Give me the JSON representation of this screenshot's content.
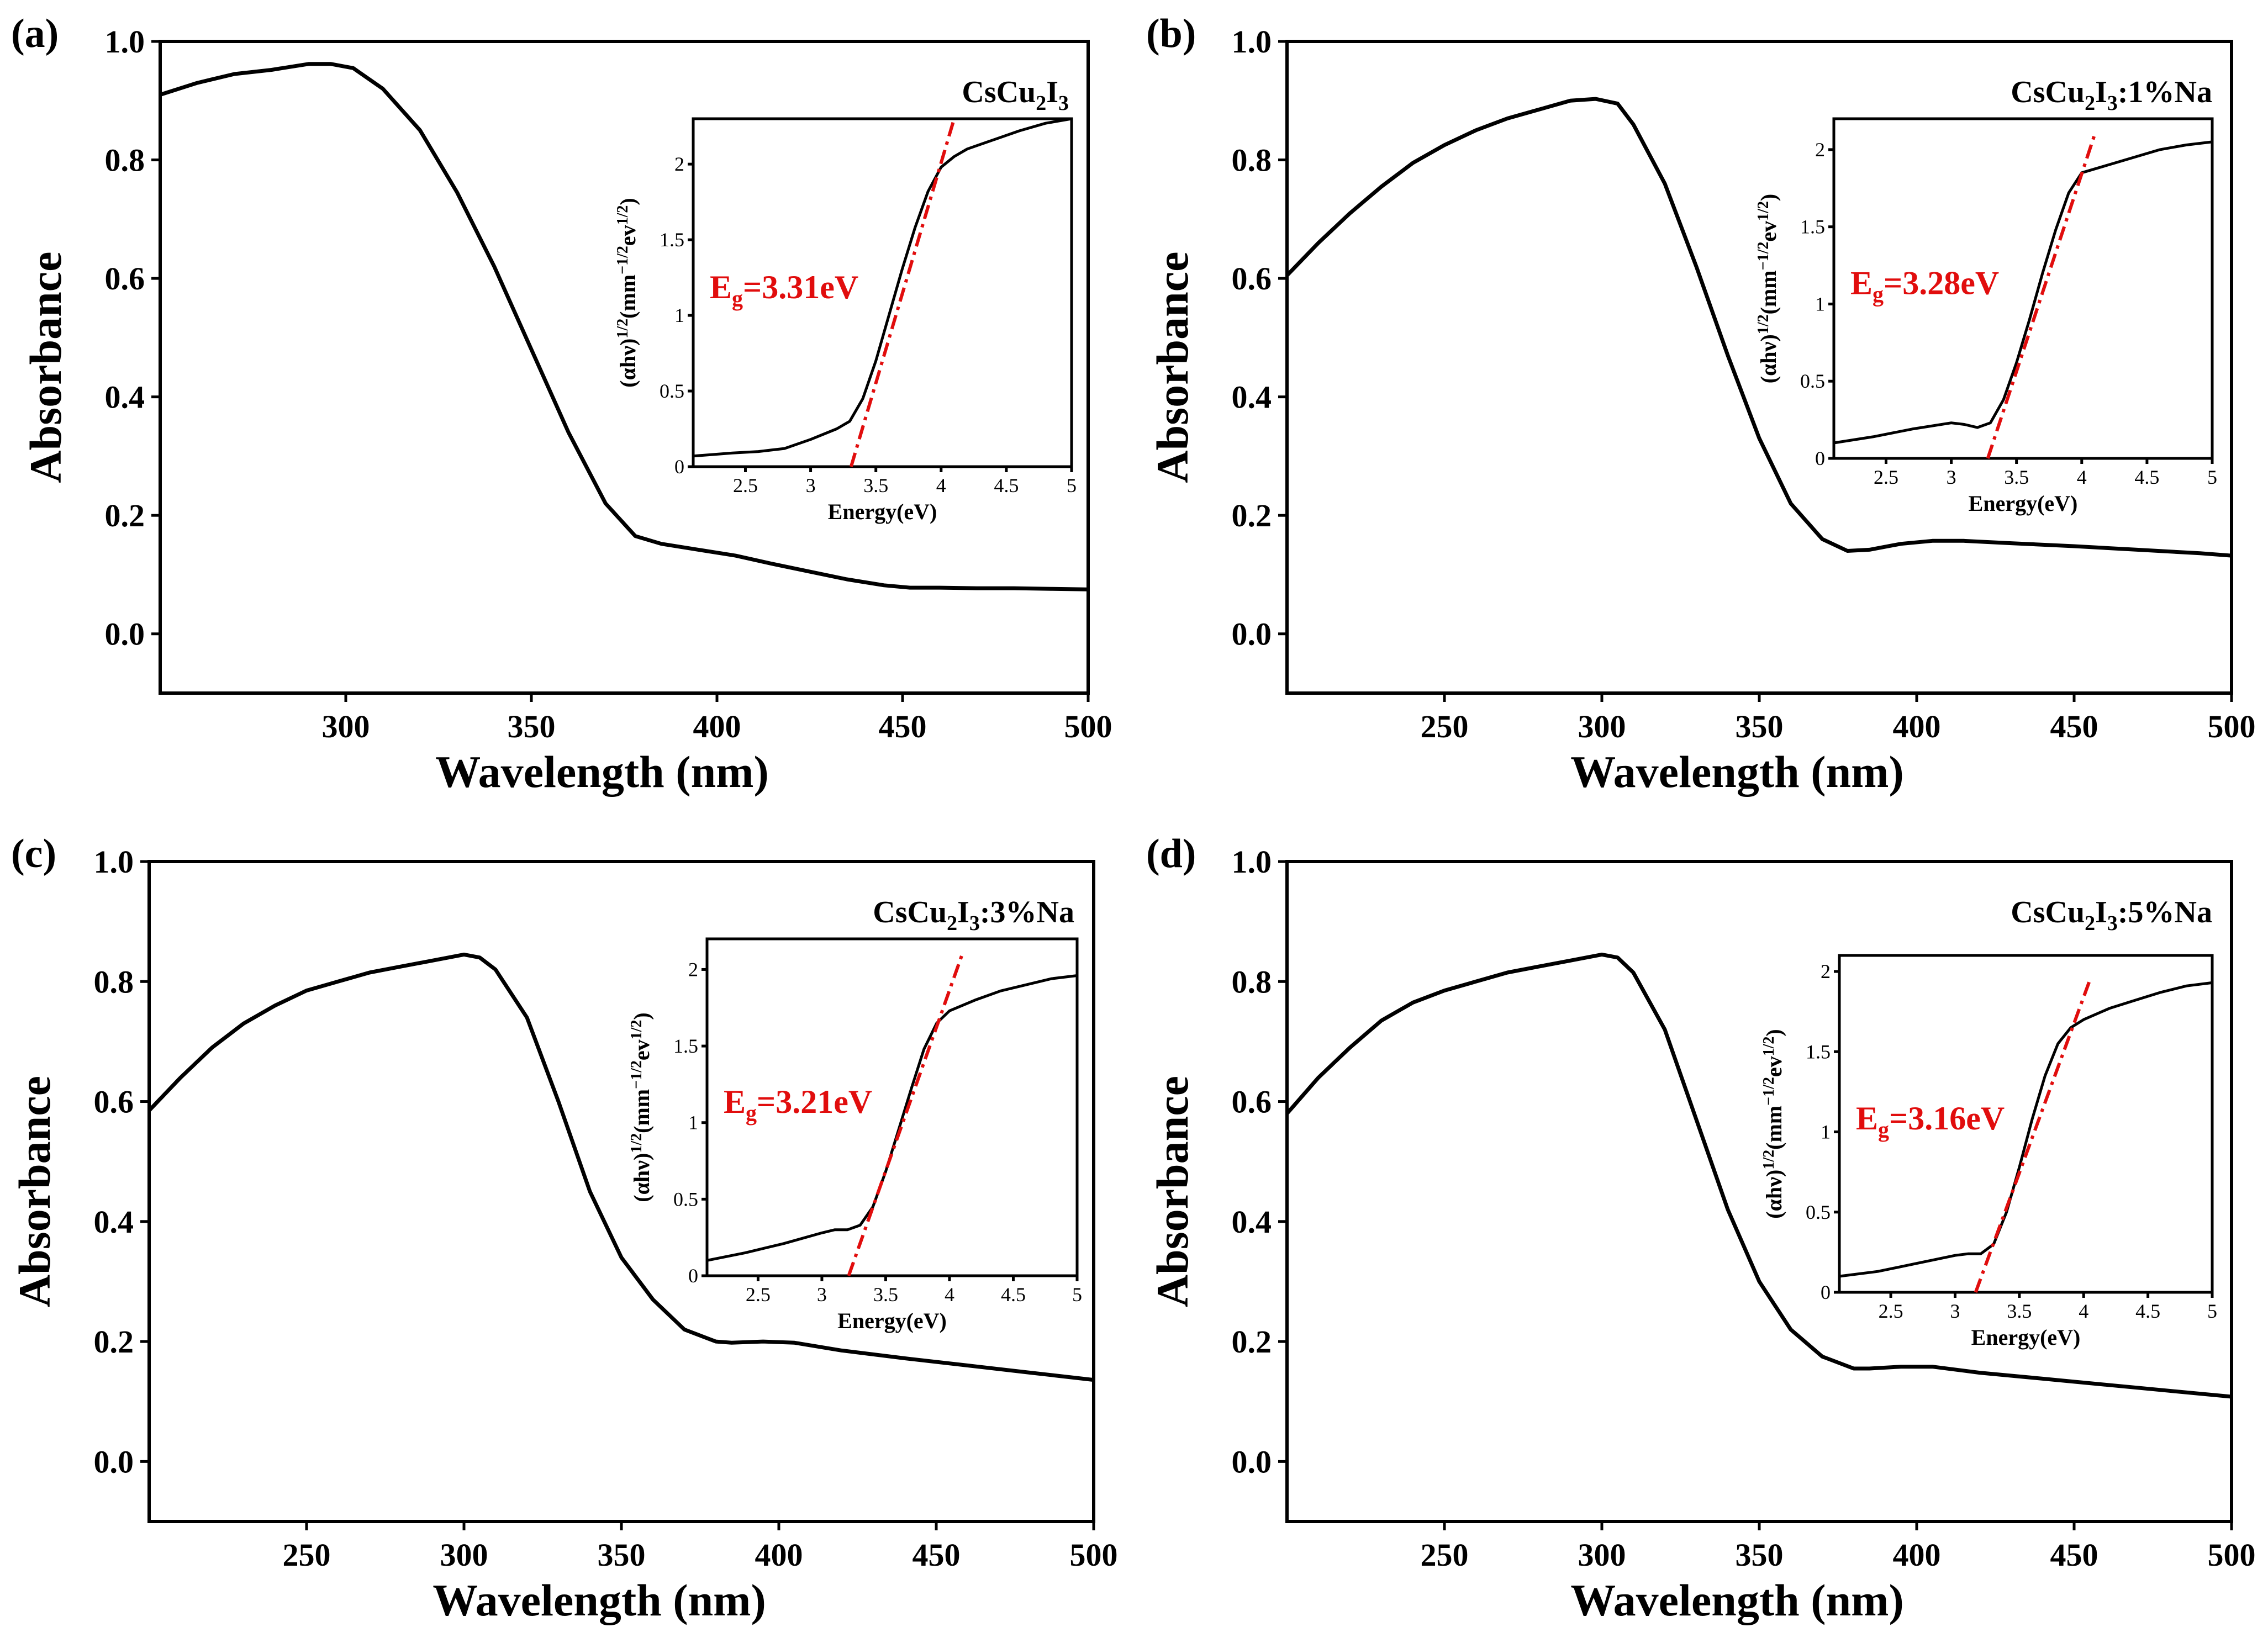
{
  "chart_data": [
    {
      "type": "line",
      "panel_label": "(a)",
      "sample": {
        "main": "CsCu",
        "sub1": "2",
        "mid": "I",
        "sub2": "3",
        "suffix": ""
      },
      "xlabel": "Wavelength (nm)",
      "ylabel": "Absorbance",
      "xlim": [
        250,
        500
      ],
      "ylim": [
        -0.1,
        1.0
      ],
      "xticks": [
        300,
        350,
        400,
        450,
        500
      ],
      "yticks": [
        0.0,
        0.2,
        0.4,
        0.6,
        0.8,
        1.0
      ],
      "series": [
        {
          "name": "Absorbance",
          "x": [
            250,
            260,
            270,
            280,
            290,
            296,
            302,
            310,
            320,
            330,
            340,
            350,
            360,
            370,
            378,
            385,
            395,
            405,
            415,
            425,
            435,
            445,
            452,
            460,
            470,
            480,
            490,
            500
          ],
          "y": [
            0.91,
            0.93,
            0.945,
            0.952,
            0.962,
            0.962,
            0.955,
            0.92,
            0.85,
            0.745,
            0.62,
            0.48,
            0.34,
            0.22,
            0.165,
            0.152,
            0.142,
            0.132,
            0.118,
            0.105,
            0.092,
            0.082,
            0.078,
            0.078,
            0.077,
            0.077,
            0.076,
            0.075
          ]
        }
      ],
      "inset": {
        "xlabel": "Energy(eV)",
        "ylabel": "(αhν)1/2(mm−1/2ev1/2)",
        "xlim": [
          2.1,
          5.0
        ],
        "ylim": [
          0.0,
          2.3
        ],
        "xticks": [
          2.5,
          3.0,
          3.5,
          4.0,
          4.5,
          5.0
        ],
        "yticks": [
          0.0,
          0.5,
          1.0,
          1.5,
          2.0
        ],
        "x": [
          2.1,
          2.4,
          2.6,
          2.8,
          3.0,
          3.2,
          3.3,
          3.4,
          3.5,
          3.6,
          3.7,
          3.8,
          3.9,
          4.0,
          4.1,
          4.2,
          4.4,
          4.6,
          4.8,
          5.0
        ],
        "y": [
          0.07,
          0.09,
          0.1,
          0.12,
          0.18,
          0.25,
          0.3,
          0.45,
          0.7,
          1.0,
          1.3,
          1.58,
          1.82,
          1.98,
          2.05,
          2.1,
          2.16,
          2.22,
          2.27,
          2.3
        ],
        "fit": {
          "x": [
            3.31,
            4.1
          ],
          "y": [
            0.0,
            2.3
          ]
        },
        "eg_text": {
          "prefix": "E",
          "sub": "g",
          "value": "=3.31eV"
        }
      }
    },
    {
      "type": "line",
      "panel_label": "(b)",
      "sample": {
        "main": "CsCu",
        "sub1": "2",
        "mid": "I",
        "sub2": "3",
        "suffix": ":1%Na"
      },
      "xlabel": "Wavelength (nm)",
      "ylabel": "Absorbance",
      "xlim": [
        200,
        500
      ],
      "ylim": [
        -0.1,
        1.0
      ],
      "xticks": [
        250,
        300,
        350,
        400,
        450,
        500
      ],
      "yticks": [
        0.0,
        0.2,
        0.4,
        0.6,
        0.8,
        1.0
      ],
      "series": [
        {
          "name": "Absorbance",
          "x": [
            200,
            210,
            220,
            230,
            240,
            250,
            260,
            270,
            280,
            290,
            298,
            305,
            310,
            320,
            330,
            340,
            350,
            360,
            370,
            378,
            385,
            395,
            405,
            415,
            430,
            450,
            470,
            490,
            500
          ],
          "y": [
            0.605,
            0.66,
            0.71,
            0.755,
            0.795,
            0.825,
            0.85,
            0.87,
            0.885,
            0.9,
            0.903,
            0.895,
            0.86,
            0.76,
            0.62,
            0.47,
            0.33,
            0.22,
            0.16,
            0.14,
            0.142,
            0.152,
            0.157,
            0.157,
            0.153,
            0.148,
            0.142,
            0.136,
            0.132
          ]
        }
      ],
      "inset": {
        "xlabel": "Energy(eV)",
        "ylabel": "(αhν)1/2(mm−1/2ev1/2)",
        "xlim": [
          2.1,
          5.0
        ],
        "ylim": [
          0.0,
          2.2
        ],
        "xticks": [
          2.5,
          3.0,
          3.5,
          4.0,
          4.5,
          5.0
        ],
        "yticks": [
          0.0,
          0.5,
          1.0,
          1.5,
          2.0
        ],
        "x": [
          2.1,
          2.4,
          2.7,
          3.0,
          3.1,
          3.2,
          3.3,
          3.4,
          3.5,
          3.6,
          3.7,
          3.8,
          3.9,
          4.0,
          4.2,
          4.4,
          4.6,
          4.8,
          5.0
        ],
        "y": [
          0.1,
          0.14,
          0.19,
          0.23,
          0.22,
          0.2,
          0.23,
          0.38,
          0.62,
          0.9,
          1.2,
          1.48,
          1.72,
          1.85,
          1.9,
          1.95,
          2.0,
          2.03,
          2.05
        ],
        "fit": {
          "x": [
            3.28,
            4.1
          ],
          "y": [
            0.0,
            2.1
          ]
        },
        "eg_text": {
          "prefix": "E",
          "sub": "g",
          "value": "=3.28eV"
        }
      }
    },
    {
      "type": "line",
      "panel_label": "(c)",
      "sample": {
        "main": "CsCu",
        "sub1": "2",
        "mid": "I",
        "sub2": "3",
        "suffix": ":3%Na"
      },
      "xlabel": "Wavelength (nm)",
      "ylabel": "Absorbance",
      "xlim": [
        200,
        500
      ],
      "ylim": [
        -0.1,
        1.0
      ],
      "xticks": [
        250,
        300,
        350,
        400,
        450,
        500
      ],
      "yticks": [
        0.0,
        0.2,
        0.4,
        0.6,
        0.8,
        1.0
      ],
      "series": [
        {
          "name": "Absorbance",
          "x": [
            200,
            210,
            220,
            230,
            240,
            250,
            260,
            270,
            280,
            290,
            300,
            305,
            310,
            320,
            330,
            340,
            350,
            360,
            370,
            380,
            385,
            395,
            405,
            420,
            440,
            460,
            480,
            500
          ],
          "y": [
            0.585,
            0.64,
            0.69,
            0.73,
            0.76,
            0.785,
            0.8,
            0.815,
            0.825,
            0.835,
            0.845,
            0.84,
            0.82,
            0.74,
            0.6,
            0.45,
            0.34,
            0.27,
            0.22,
            0.2,
            0.198,
            0.2,
            0.198,
            0.185,
            0.172,
            0.16,
            0.148,
            0.136
          ]
        }
      ],
      "inset": {
        "xlabel": "Energy(eV)",
        "ylabel": "(αhν)1/2(mm−1/2ev1/2)",
        "xlim": [
          2.1,
          5.0
        ],
        "ylim": [
          0.0,
          2.2
        ],
        "xticks": [
          2.5,
          3.0,
          3.5,
          4.0,
          4.5,
          5.0
        ],
        "yticks": [
          0.0,
          0.5,
          1.0,
          1.5,
          2.0
        ],
        "x": [
          2.1,
          2.4,
          2.7,
          3.0,
          3.1,
          3.2,
          3.3,
          3.4,
          3.5,
          3.6,
          3.7,
          3.8,
          3.9,
          4.0,
          4.2,
          4.4,
          4.6,
          4.8,
          5.0
        ],
        "y": [
          0.1,
          0.15,
          0.21,
          0.28,
          0.3,
          0.3,
          0.33,
          0.45,
          0.68,
          0.95,
          1.22,
          1.48,
          1.65,
          1.73,
          1.8,
          1.86,
          1.9,
          1.94,
          1.96
        ],
        "fit": {
          "x": [
            3.21,
            4.1
          ],
          "y": [
            0.0,
            2.1
          ]
        },
        "eg_text": {
          "prefix": "E",
          "sub": "g",
          "value": "=3.21eV"
        }
      }
    },
    {
      "type": "line",
      "panel_label": "(d)",
      "sample": {
        "main": "CsCu",
        "sub1": "2",
        "mid": "I",
        "sub2": "3",
        "suffix": ":5%Na"
      },
      "xlabel": "Wavelength (nm)",
      "ylabel": "Absorbance",
      "xlim": [
        200,
        500
      ],
      "ylim": [
        -0.1,
        1.0
      ],
      "xticks": [
        250,
        300,
        350,
        400,
        450,
        500
      ],
      "yticks": [
        0.0,
        0.2,
        0.4,
        0.6,
        0.8,
        1.0
      ],
      "series": [
        {
          "name": "Absorbance",
          "x": [
            200,
            210,
            220,
            230,
            240,
            250,
            260,
            270,
            280,
            290,
            300,
            305,
            310,
            320,
            330,
            340,
            350,
            360,
            370,
            380,
            385,
            395,
            405,
            420,
            440,
            460,
            480,
            500
          ],
          "y": [
            0.58,
            0.64,
            0.69,
            0.735,
            0.765,
            0.785,
            0.8,
            0.815,
            0.825,
            0.835,
            0.845,
            0.84,
            0.815,
            0.72,
            0.57,
            0.42,
            0.3,
            0.22,
            0.175,
            0.155,
            0.155,
            0.158,
            0.158,
            0.148,
            0.138,
            0.128,
            0.118,
            0.108
          ]
        }
      ],
      "inset": {
        "xlabel": "Energy(eV)",
        "ylabel": "(αhν)1/2(mm−1/2ev1/2)",
        "xlim": [
          2.1,
          5.0
        ],
        "ylim": [
          0.0,
          2.1
        ],
        "xticks": [
          2.5,
          3.0,
          3.5,
          4.0,
          4.5,
          5.0
        ],
        "yticks": [
          0.0,
          0.5,
          1.0,
          1.5,
          2.0
        ],
        "x": [
          2.1,
          2.4,
          2.7,
          3.0,
          3.1,
          3.2,
          3.3,
          3.4,
          3.5,
          3.6,
          3.7,
          3.8,
          3.9,
          4.0,
          4.2,
          4.4,
          4.6,
          4.8,
          5.0
        ],
        "y": [
          0.1,
          0.13,
          0.18,
          0.23,
          0.24,
          0.24,
          0.3,
          0.5,
          0.78,
          1.08,
          1.35,
          1.55,
          1.65,
          1.7,
          1.77,
          1.82,
          1.87,
          1.91,
          1.93
        ],
        "fit": {
          "x": [
            3.16,
            4.05
          ],
          "y": [
            0.0,
            1.95
          ]
        },
        "eg_text": {
          "prefix": "E",
          "sub": "g",
          "value": "=3.16eV"
        }
      }
    }
  ]
}
